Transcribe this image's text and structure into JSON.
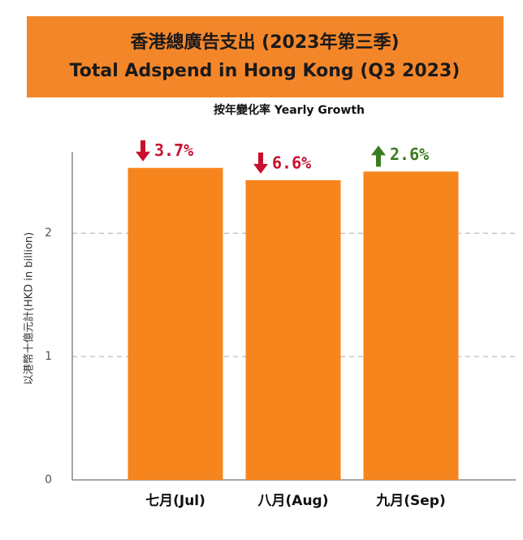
{
  "chart_data": {
    "type": "bar",
    "title": "香港總廣告支出 (2023年第三季)",
    "subtitle": "Total Adspend in Hong Kong (Q3 2023)",
    "annotation": "按年變化率 Yearly Growth",
    "y_label": "以港幣十億元計(HKD in billion)",
    "categories": [
      "七月(Jul)",
      "八月(Aug)",
      "九月(Sep)"
    ],
    "values": [
      2.53,
      2.43,
      2.5
    ],
    "color": "#f7851d",
    "ylim": [
      0,
      2.66
    ],
    "yticks": [
      0,
      1,
      2
    ],
    "grid": true,
    "growth": {
      "values": [
        3.7,
        6.6,
        2.6
      ],
      "value_labels": [
        "3.7%",
        "6.6%",
        "2.6%"
      ],
      "directions": [
        "down",
        "down",
        "up"
      ],
      "colors": [
        "#c8102e",
        "#c8102e",
        "#3a7d1e"
      ]
    }
  }
}
